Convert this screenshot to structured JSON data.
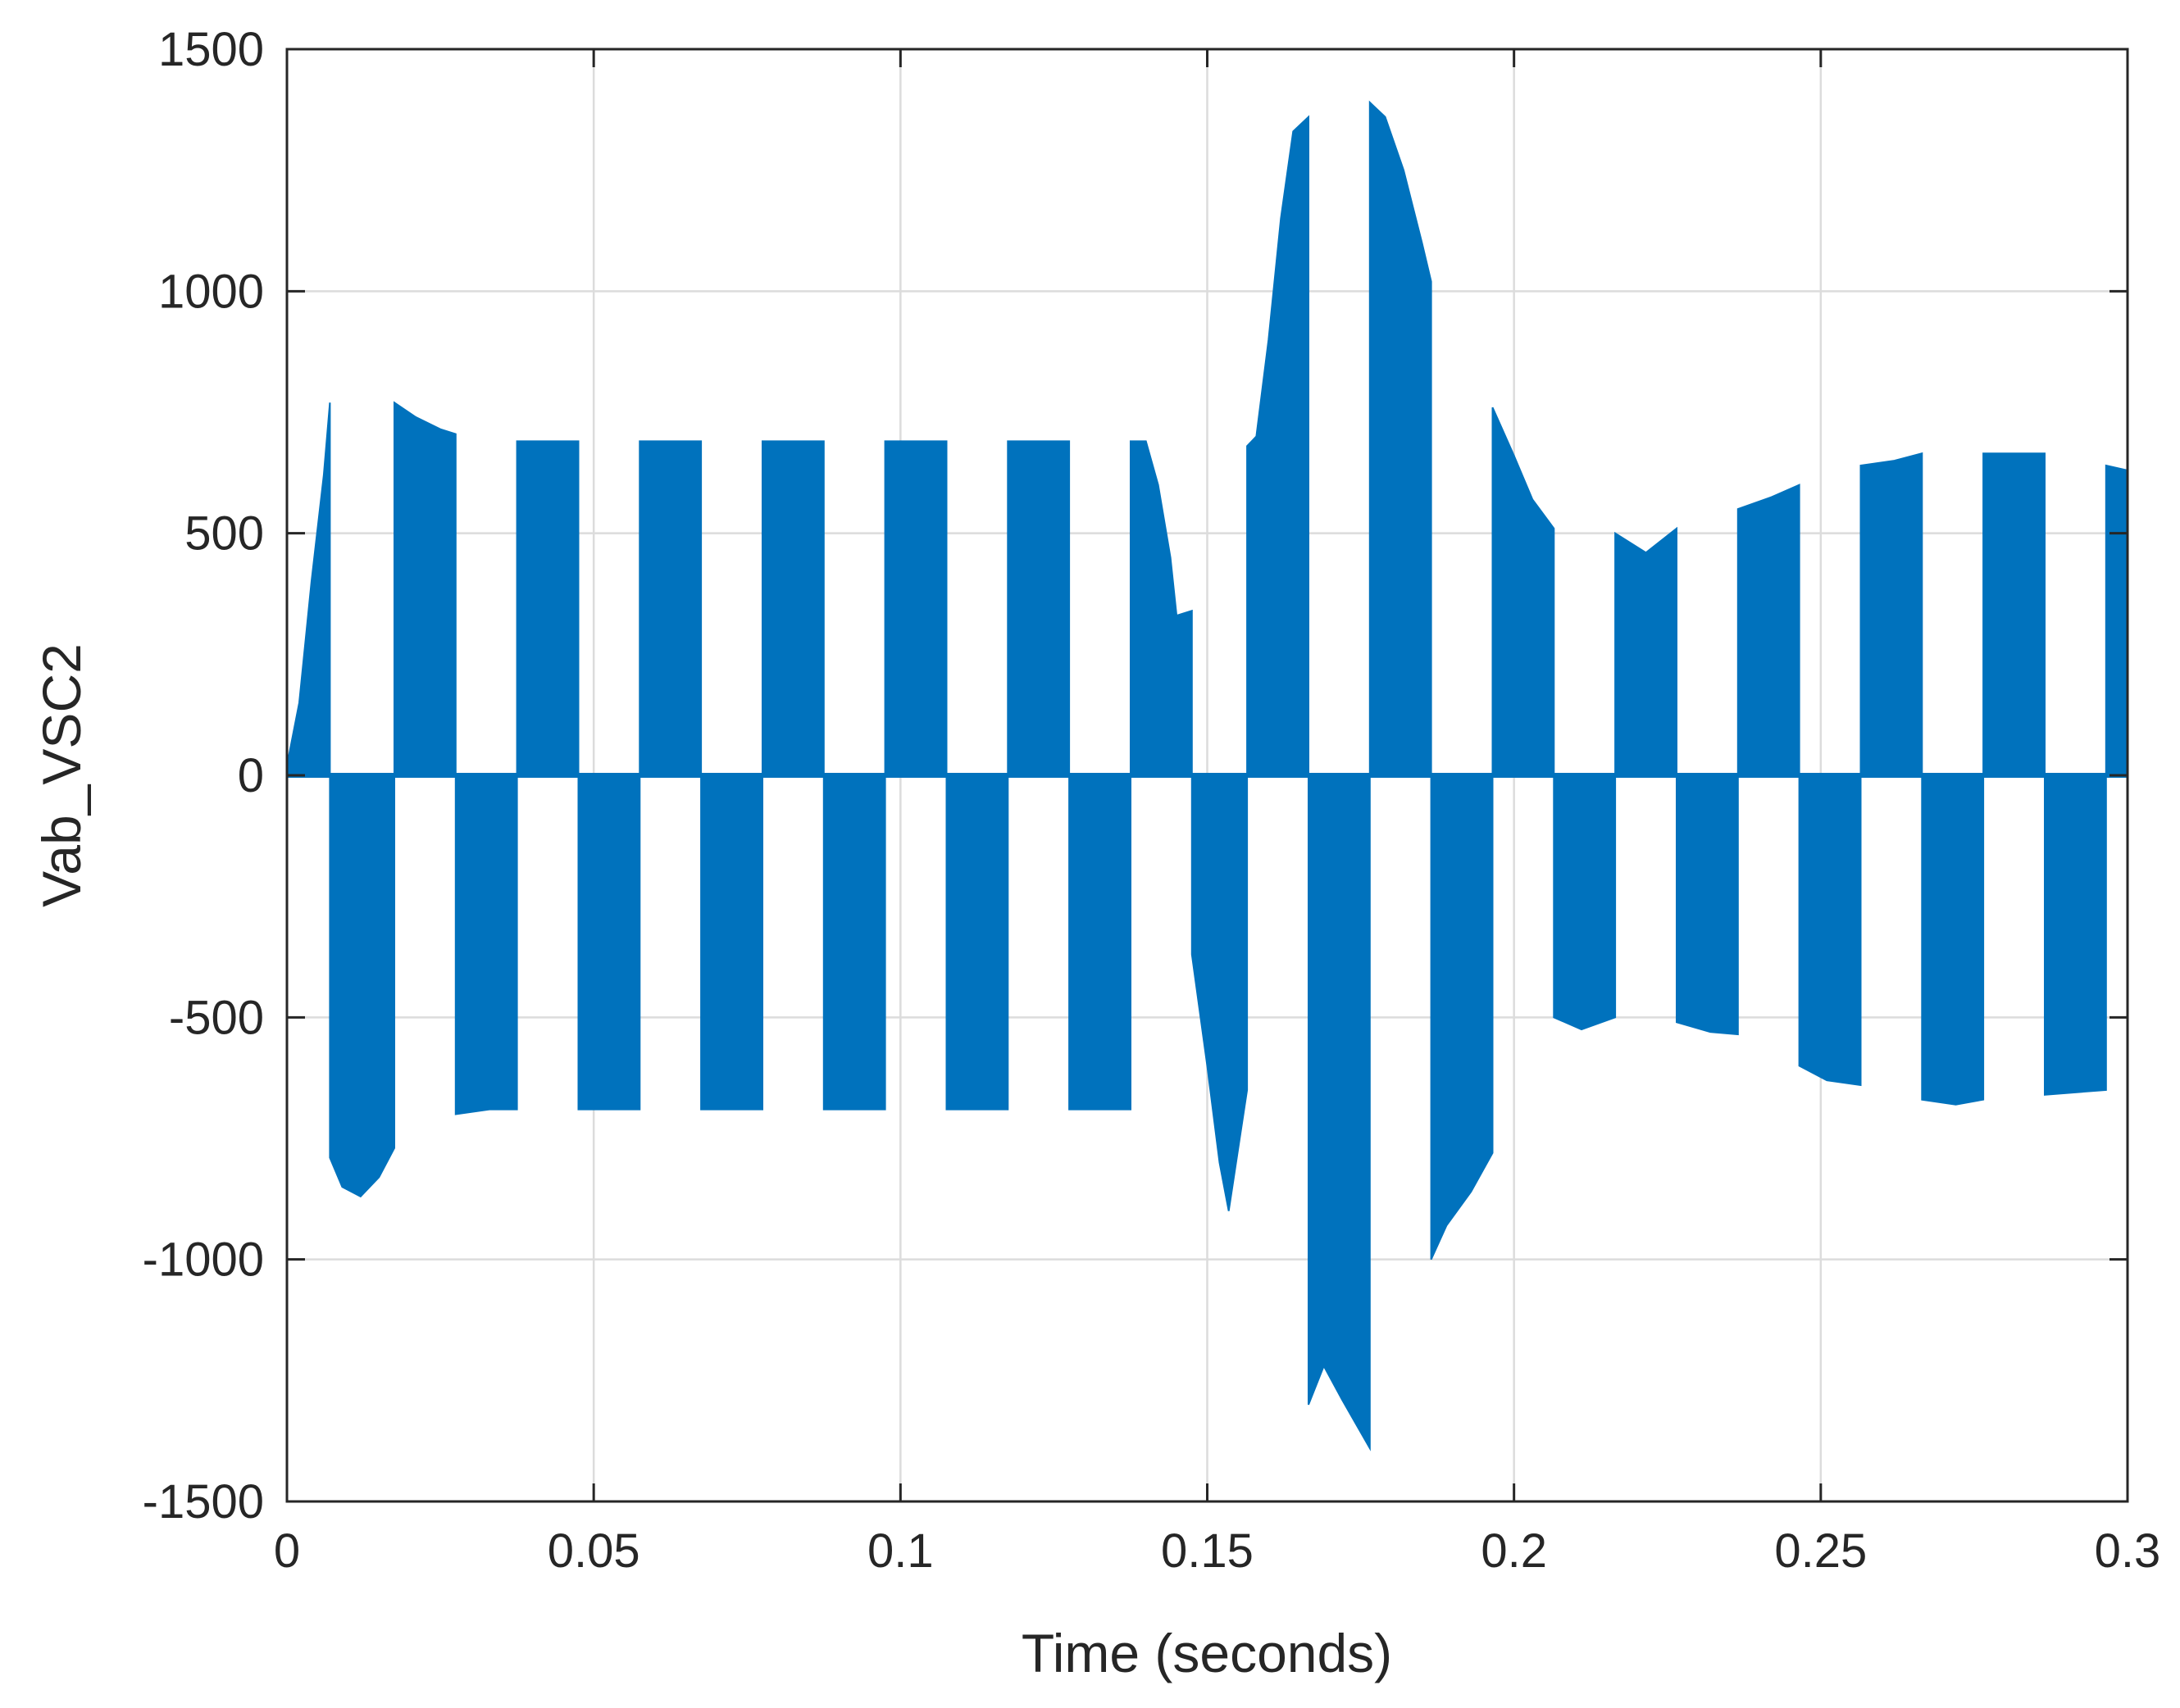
{
  "chart_data": {
    "type": "line",
    "title": "",
    "xlabel": "Time (seconds)",
    "ylabel": "Vab_VSC2",
    "xlim": [
      0,
      0.3
    ],
    "ylim": [
      -1500,
      1500
    ],
    "xticks": [
      0,
      0.05,
      0.1,
      0.15,
      0.2,
      0.25,
      0.3
    ],
    "xtick_labels": [
      "0",
      "0.05",
      "0.1",
      "0.15",
      "0.2",
      "0.25",
      "0.3"
    ],
    "yticks": [
      -1500,
      -1000,
      -500,
      0,
      500,
      1000,
      1500
    ],
    "ytick_labels": [
      "-1500",
      "-1000",
      "-500",
      "0",
      "500",
      "1000",
      "1500"
    ],
    "grid": true,
    "legend": "none",
    "color": "#0072BD",
    "series": [
      {
        "pulses": [
          {
            "t_start": 0.0,
            "t_end": 0.007,
            "envelope": [
              [
                0.0,
                20
              ],
              [
                0.002,
                150
              ],
              [
                0.004,
                400
              ],
              [
                0.006,
                620
              ],
              [
                0.007,
                770
              ]
            ]
          },
          {
            "t_start": 0.007,
            "t_end": 0.0175,
            "envelope": [
              [
                0.007,
                -790
              ],
              [
                0.009,
                -850
              ],
              [
                0.012,
                -870
              ],
              [
                0.015,
                -830
              ],
              [
                0.0175,
                -770
              ]
            ]
          },
          {
            "t_start": 0.0175,
            "t_end": 0.0275,
            "envelope": [
              [
                0.0175,
                770
              ],
              [
                0.021,
                740
              ],
              [
                0.025,
                715
              ],
              [
                0.0275,
                705
              ]
            ]
          },
          {
            "t_start": 0.0275,
            "t_end": 0.0375,
            "envelope": [
              [
                0.0275,
                -700
              ],
              [
                0.033,
                -690
              ],
              [
                0.0375,
                -690
              ]
            ]
          },
          {
            "t_start": 0.0375,
            "t_end": 0.0475,
            "envelope": [
              [
                0.0375,
                690
              ],
              [
                0.0475,
                690
              ]
            ]
          },
          {
            "t_start": 0.0475,
            "t_end": 0.0575,
            "envelope": [
              [
                0.0475,
                -690
              ],
              [
                0.0575,
                -690
              ]
            ]
          },
          {
            "t_start": 0.0575,
            "t_end": 0.0675,
            "envelope": [
              [
                0.0575,
                690
              ],
              [
                0.0675,
                690
              ]
            ]
          },
          {
            "t_start": 0.0675,
            "t_end": 0.0775,
            "envelope": [
              [
                0.0675,
                -690
              ],
              [
                0.0775,
                -690
              ]
            ]
          },
          {
            "t_start": 0.0775,
            "t_end": 0.0875,
            "envelope": [
              [
                0.0775,
                690
              ],
              [
                0.0875,
                690
              ]
            ]
          },
          {
            "t_start": 0.0875,
            "t_end": 0.0975,
            "envelope": [
              [
                0.0875,
                -690
              ],
              [
                0.0975,
                -690
              ]
            ]
          },
          {
            "t_start": 0.0975,
            "t_end": 0.1075,
            "envelope": [
              [
                0.0975,
                690
              ],
              [
                0.1075,
                690
              ]
            ]
          },
          {
            "t_start": 0.1075,
            "t_end": 0.1175,
            "envelope": [
              [
                0.1075,
                -690
              ],
              [
                0.1175,
                -690
              ]
            ]
          },
          {
            "t_start": 0.1175,
            "t_end": 0.1275,
            "envelope": [
              [
                0.1175,
                690
              ],
              [
                0.1275,
                690
              ]
            ]
          },
          {
            "t_start": 0.1275,
            "t_end": 0.1375,
            "envelope": [
              [
                0.1275,
                -690
              ],
              [
                0.1375,
                -690
              ]
            ]
          },
          {
            "t_start": 0.1375,
            "t_end": 0.1475,
            "envelope": [
              [
                0.1375,
                690
              ],
              [
                0.14,
                690
              ],
              [
                0.142,
                600
              ],
              [
                0.144,
                450
              ],
              [
                0.145,
                330
              ],
              [
                0.1475,
                340
              ]
            ]
          },
          {
            "t_start": 0.1475,
            "t_end": 0.1565,
            "envelope": [
              [
                0.1475,
                -370
              ],
              [
                0.15,
                -600
              ],
              [
                0.152,
                -800
              ],
              [
                0.1535,
                -900
              ],
              [
                0.1565,
                -650
              ]
            ]
          },
          {
            "t_start": 0.1565,
            "t_end": 0.1665,
            "envelope": [
              [
                0.1565,
                680
              ],
              [
                0.158,
                700
              ],
              [
                0.16,
                900
              ],
              [
                0.162,
                1150
              ],
              [
                0.164,
                1330
              ],
              [
                0.1665,
                1360
              ]
            ]
          },
          {
            "t_start": 0.1665,
            "t_end": 0.1765,
            "envelope": [
              [
                0.1665,
                -1300
              ],
              [
                0.169,
                -1220
              ],
              [
                0.172,
                -1290
              ],
              [
                0.1765,
                -1390
              ]
            ]
          },
          {
            "t_start": 0.1765,
            "t_end": 0.1865,
            "envelope": [
              [
                0.1765,
                1390
              ],
              [
                0.179,
                1360
              ],
              [
                0.182,
                1250
              ],
              [
                0.185,
                1100
              ],
              [
                0.1865,
                1020
              ]
            ]
          },
          {
            "t_start": 0.1865,
            "t_end": 0.1965,
            "envelope": [
              [
                0.1865,
                -1000
              ],
              [
                0.189,
                -930
              ],
              [
                0.193,
                -860
              ],
              [
                0.1965,
                -780
              ]
            ]
          },
          {
            "t_start": 0.1965,
            "t_end": 0.2065,
            "envelope": [
              [
                0.1965,
                760
              ],
              [
                0.2,
                660
              ],
              [
                0.203,
                570
              ],
              [
                0.2065,
                510
              ]
            ]
          },
          {
            "t_start": 0.2065,
            "t_end": 0.2165,
            "envelope": [
              [
                0.2065,
                -500
              ],
              [
                0.211,
                -525
              ],
              [
                0.2165,
                -500
              ]
            ]
          },
          {
            "t_start": 0.2165,
            "t_end": 0.2265,
            "envelope": [
              [
                0.2165,
                500
              ],
              [
                0.2215,
                460
              ],
              [
                0.2265,
                510
              ]
            ]
          },
          {
            "t_start": 0.2265,
            "t_end": 0.2365,
            "envelope": [
              [
                0.2265,
                -510
              ],
              [
                0.232,
                -530
              ],
              [
                0.2365,
                -535
              ]
            ]
          },
          {
            "t_start": 0.2365,
            "t_end": 0.2465,
            "envelope": [
              [
                0.2365,
                550
              ],
              [
                0.242,
                575
              ],
              [
                0.2465,
                600
              ]
            ]
          },
          {
            "t_start": 0.2465,
            "t_end": 0.2565,
            "envelope": [
              [
                0.2465,
                -600
              ],
              [
                0.251,
                -630
              ],
              [
                0.2565,
                -640
              ]
            ]
          },
          {
            "t_start": 0.2565,
            "t_end": 0.2665,
            "envelope": [
              [
                0.2565,
                640
              ],
              [
                0.262,
                650
              ],
              [
                0.2665,
                665
              ]
            ]
          },
          {
            "t_start": 0.2665,
            "t_end": 0.2765,
            "envelope": [
              [
                0.2665,
                -670
              ],
              [
                0.272,
                -680
              ],
              [
                0.2765,
                -670
              ]
            ]
          },
          {
            "t_start": 0.2765,
            "t_end": 0.2865,
            "envelope": [
              [
                0.2765,
                665
              ],
              [
                0.2865,
                665
              ]
            ]
          },
          {
            "t_start": 0.2865,
            "t_end": 0.2965,
            "envelope": [
              [
                0.2865,
                -660
              ],
              [
                0.2965,
                -650
              ]
            ]
          },
          {
            "t_start": 0.2965,
            "t_end": 0.3,
            "envelope": [
              [
                0.2965,
                640
              ],
              [
                0.3,
                630
              ]
            ]
          }
        ]
      }
    ]
  }
}
